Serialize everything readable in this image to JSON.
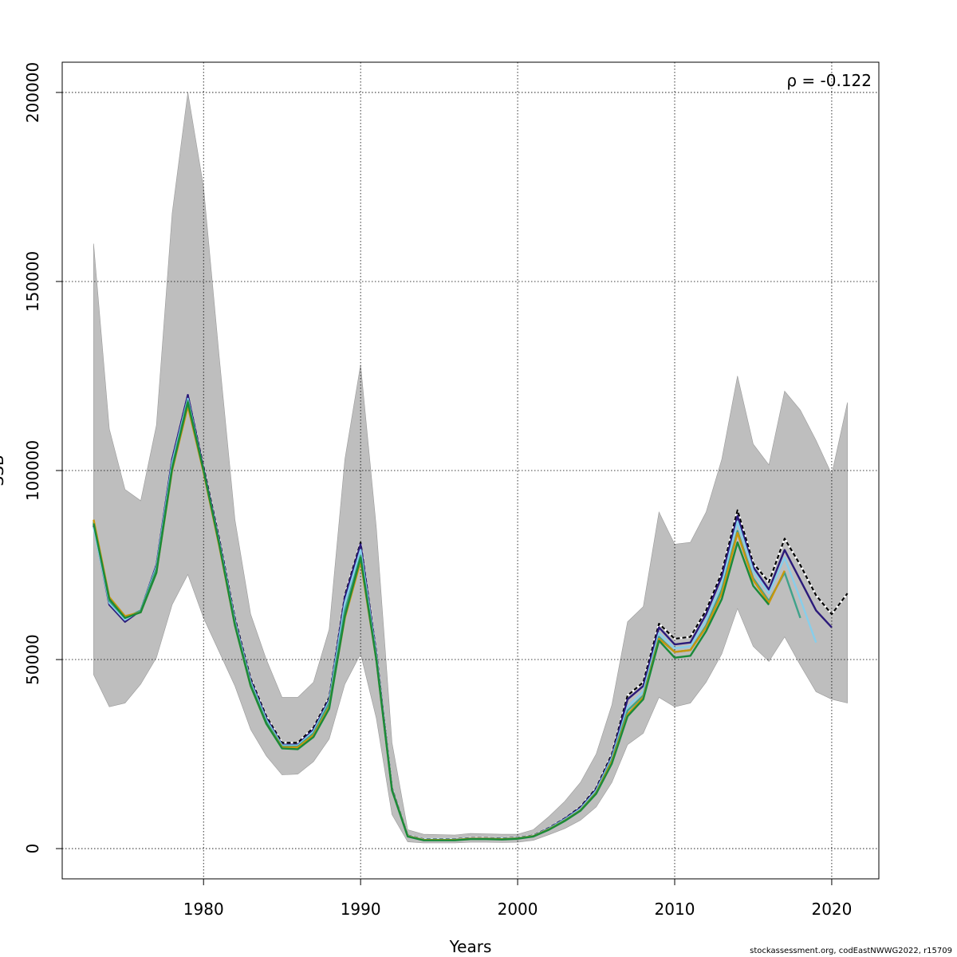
{
  "chart_data": {
    "type": "line",
    "title": "",
    "xlabel": "Years",
    "ylabel": "SSB",
    "annotation": "ρ = -0.122",
    "credit": "stockassessment.org, codEastNWWG2022, r15709",
    "xlim": [
      1971,
      2023
    ],
    "ylim": [
      -8000,
      208000
    ],
    "x_ticks": [
      1980,
      1990,
      2000,
      2010,
      2020
    ],
    "y_ticks": [
      0,
      50000,
      100000,
      150000,
      200000
    ],
    "grid": true,
    "grid_style": "dotted",
    "confidence_band": {
      "color": "#bebebe",
      "x": [
        1973,
        1974,
        1975,
        1976,
        1977,
        1978,
        1979,
        1980,
        1981,
        1982,
        1983,
        1984,
        1985,
        1986,
        1987,
        1988,
        1989,
        1990,
        1991,
        1992,
        1993,
        1994,
        1995,
        1996,
        1997,
        1998,
        1999,
        2000,
        2001,
        2002,
        2003,
        2004,
        2005,
        2006,
        2007,
        2008,
        2009,
        2010,
        2011,
        2012,
        2013,
        2014,
        2015,
        2016,
        2017,
        2018,
        2019,
        2020,
        2021
      ],
      "upper": [
        160000,
        111000,
        95000,
        92000,
        112000,
        168000,
        200000,
        175000,
        130000,
        87000,
        62000,
        50000,
        40000,
        40000,
        44000,
        58000,
        103000,
        128000,
        85000,
        28000,
        5000,
        3800,
        3700,
        3600,
        4000,
        3900,
        3800,
        3800,
        5000,
        8500,
        12500,
        17500,
        25000,
        38000,
        60000,
        64000,
        89000,
        80500,
        81000,
        89000,
        103000,
        125000,
        107000,
        101500,
        121000,
        116000,
        108000,
        99000,
        118000
      ],
      "lower": [
        46000,
        37500,
        38500,
        43500,
        50500,
        64500,
        72500,
        61000,
        52000,
        43000,
        31500,
        24500,
        19500,
        19700,
        23000,
        29000,
        43500,
        51500,
        34500,
        9000,
        1800,
        1500,
        1500,
        1500,
        1700,
        1700,
        1600,
        1700,
        2200,
        3700,
        5300,
        7500,
        11000,
        17500,
        27500,
        30500,
        40000,
        37500,
        38500,
        44000,
        51500,
        63500,
        53500,
        49500,
        56000,
        48500,
        41500,
        39500,
        38500
      ]
    },
    "series": [
      {
        "name": "",
        "color": "#000000",
        "dashed": true,
        "x": [
          1973,
          1974,
          1975,
          1976,
          1977,
          1978,
          1979,
          1980,
          1981,
          1982,
          1983,
          1984,
          1985,
          1986,
          1987,
          1988,
          1989,
          1990,
          1991,
          1992,
          1993,
          1994,
          1995,
          1996,
          1997,
          1998,
          1999,
          2000,
          2001,
          2002,
          2003,
          2004,
          2005,
          2006,
          2007,
          2008,
          2009,
          2010,
          2011,
          2012,
          2013,
          2014,
          2015,
          2016,
          2017,
          2018,
          2019,
          2020,
          2021
        ],
        "values": [
          86000,
          65000,
          61000,
          63000,
          75000,
          103000,
          120000,
          101000,
          82000,
          61000,
          45000,
          35000,
          28000,
          28000,
          32000,
          40000,
          67000,
          81000,
          52000,
          16000,
          3500,
          2500,
          2500,
          2500,
          2800,
          2800,
          2700,
          2900,
          3500,
          5500,
          8000,
          11000,
          16000,
          25000,
          40500,
          44000,
          59500,
          55500,
          56000,
          63000,
          73000,
          89500,
          75500,
          70500,
          82000,
          75000,
          67000,
          62000,
          67500
        ]
      },
      {
        "name": "",
        "color": "#2b1a7a",
        "dashed": false,
        "x": [
          1973,
          1974,
          1975,
          1976,
          1977,
          1978,
          1979,
          1980,
          1981,
          1982,
          1983,
          1984,
          1985,
          1986,
          1987,
          1988,
          1989,
          1990,
          1991,
          1992,
          1993,
          1994,
          1995,
          1996,
          1997,
          1998,
          1999,
          2000,
          2001,
          2002,
          2003,
          2004,
          2005,
          2006,
          2007,
          2008,
          2009,
          2010,
          2011,
          2012,
          2013,
          2014,
          2015,
          2016,
          2017,
          2018,
          2019,
          2020
        ],
        "values": [
          85500,
          64500,
          60000,
          63000,
          75000,
          103000,
          120000,
          100500,
          81500,
          60500,
          44500,
          34500,
          27500,
          27500,
          31500,
          39500,
          66500,
          80500,
          51500,
          15800,
          3400,
          2400,
          2400,
          2400,
          2700,
          2700,
          2600,
          2800,
          3400,
          5400,
          7900,
          10800,
          15700,
          24500,
          39500,
          43000,
          58500,
          54000,
          54500,
          62000,
          72000,
          88000,
          74500,
          68500,
          79000,
          71000,
          63000,
          58500
        ]
      },
      {
        "name": "",
        "color": "#87ceeb",
        "dashed": false,
        "x": [
          1973,
          1974,
          1975,
          1976,
          1977,
          1978,
          1979,
          1980,
          1981,
          1982,
          1983,
          1984,
          1985,
          1986,
          1987,
          1988,
          1989,
          1990,
          1991,
          1992,
          1993,
          1994,
          1995,
          1996,
          1997,
          1998,
          1999,
          2000,
          2001,
          2002,
          2003,
          2004,
          2005,
          2006,
          2007,
          2008,
          2009,
          2010,
          2011,
          2012,
          2013,
          2014,
          2015,
          2016,
          2017,
          2018,
          2019
        ],
        "values": [
          85000,
          65000,
          60500,
          63000,
          74500,
          102000,
          119000,
          100000,
          81000,
          60000,
          44000,
          34000,
          27300,
          27300,
          31000,
          39000,
          65000,
          79000,
          51000,
          15700,
          3400,
          2400,
          2400,
          2400,
          2700,
          2700,
          2600,
          2800,
          3400,
          5300,
          7700,
          10500,
          15300,
          24000,
          37500,
          41500,
          57000,
          53000,
          53500,
          60500,
          70000,
          86500,
          73500,
          67500,
          77000,
          66000,
          54500
        ]
      },
      {
        "name": "",
        "color": "#3fa28a",
        "dashed": false,
        "x": [
          1973,
          1974,
          1975,
          1976,
          1977,
          1978,
          1979,
          1980,
          1981,
          1982,
          1983,
          1984,
          1985,
          1986,
          1987,
          1988,
          1989,
          1990,
          1991,
          1992,
          1993,
          1994,
          1995,
          1996,
          1997,
          1998,
          1999,
          2000,
          2001,
          2002,
          2003,
          2004,
          2005,
          2006,
          2007,
          2008,
          2009,
          2010,
          2011,
          2012,
          2013,
          2014,
          2015,
          2016,
          2017,
          2018
        ],
        "values": [
          86500,
          65500,
          61000,
          63000,
          74000,
          101000,
          118500,
          100000,
          80500,
          59500,
          43500,
          33500,
          27000,
          27000,
          30500,
          38500,
          63000,
          77500,
          50500,
          15600,
          3300,
          2300,
          2300,
          2300,
          2600,
          2600,
          2500,
          2700,
          3300,
          5200,
          7500,
          10200,
          14900,
          23500,
          36500,
          40500,
          56000,
          52000,
          52500,
          59000,
          68500,
          84000,
          71500,
          65500,
          73000,
          61000
        ]
      },
      {
        "name": "",
        "color": "#c8960c",
        "dashed": false,
        "x": [
          1973,
          1974,
          1975,
          1976,
          1977,
          1978,
          1979,
          1980,
          1981,
          1982,
          1983,
          1984,
          1985,
          1986,
          1987,
          1988,
          1989,
          1990,
          1991,
          1992,
          1993,
          1994,
          1995,
          1996,
          1997,
          1998,
          1999,
          2000,
          2001,
          2002,
          2003,
          2004,
          2005,
          2006,
          2007,
          2008,
          2009,
          2010,
          2011,
          2012,
          2013,
          2014,
          2015,
          2016,
          2017
        ],
        "values": [
          87000,
          66500,
          61500,
          62500,
          73000,
          100000,
          117000,
          99500,
          80000,
          59000,
          43000,
          33000,
          26800,
          26800,
          30000,
          37500,
          61000,
          76000,
          50000,
          15500,
          3300,
          2300,
          2300,
          2300,
          2600,
          2600,
          2500,
          2700,
          3300,
          5100,
          7400,
          10100,
          14700,
          23000,
          35500,
          40000,
          55500,
          52000,
          52500,
          58500,
          67500,
          83500,
          71000,
          65000,
          73500
        ]
      },
      {
        "name": "",
        "color": "#1a8a3a",
        "dashed": false,
        "x": [
          1973,
          1974,
          1975,
          1976,
          1977,
          1978,
          1979,
          1980,
          1981,
          1982,
          1983,
          1984,
          1985,
          1986,
          1987,
          1988,
          1989,
          1990,
          1991,
          1992,
          1993,
          1994,
          1995,
          1996,
          1997,
          1998,
          1999,
          2000,
          2001,
          2002,
          2003,
          2004,
          2005,
          2006,
          2007,
          2008,
          2009,
          2010,
          2011,
          2012,
          2013,
          2014,
          2015,
          2016
        ],
        "values": [
          86000,
          66000,
          61000,
          62500,
          73000,
          100500,
          118000,
          100000,
          80500,
          59000,
          43000,
          33000,
          26500,
          26300,
          29500,
          37000,
          61500,
          77000,
          50000,
          15400,
          3200,
          2200,
          2200,
          2200,
          2500,
          2500,
          2400,
          2600,
          3200,
          5000,
          7300,
          10000,
          14500,
          22500,
          35000,
          39500,
          55000,
          50500,
          51000,
          57500,
          66000,
          81000,
          69500,
          64500
        ]
      }
    ]
  }
}
